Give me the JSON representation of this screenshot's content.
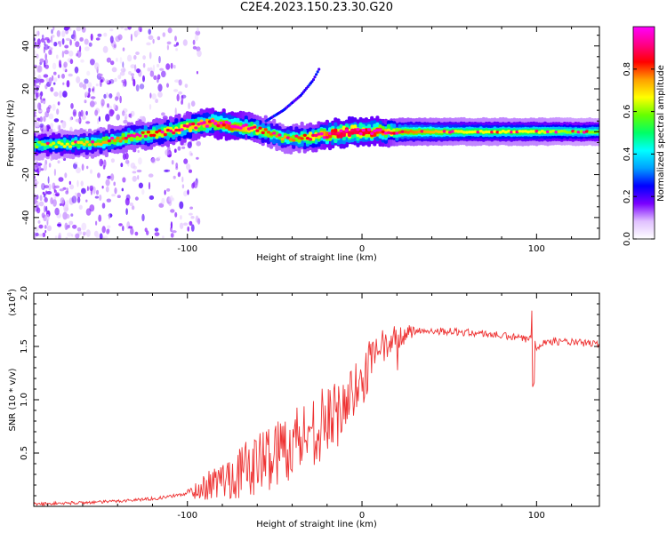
{
  "title": "C2E4.2023.150.23.30.G20",
  "chart_data": [
    {
      "type": "heatmap",
      "title": "C2E4.2023.150.23.30.G20",
      "xlabel": "Height of straight line (km)",
      "ylabel": "Frequency (Hz)",
      "xlim": [
        -188,
        136
      ],
      "ylim": [
        -50,
        49
      ],
      "xticks": [
        -100,
        0,
        100
      ],
      "xtick_labels": [
        "-100",
        "0",
        "100"
      ],
      "yticks": [
        -40,
        -20,
        0,
        20,
        40
      ],
      "ytick_labels": [
        "-40",
        "-20",
        "0",
        "20",
        "40"
      ],
      "colorbar": {
        "label": "Normalized spectral amplitude",
        "range": [
          0,
          1
        ],
        "ticks": [
          0.0,
          0.2,
          0.4,
          0.6,
          0.8
        ],
        "tick_labels": [
          "0.0",
          "0.2",
          "0.4",
          "0.6",
          "0.8"
        ],
        "colormap": [
          "#ffffff",
          "#e0c0ff",
          "#7a00ff",
          "#0000ff",
          "#00a0ff",
          "#00ffff",
          "#00ff66",
          "#66ff00",
          "#ffff00",
          "#ffa000",
          "#ff0000",
          "#ff0088",
          "#ff00ff"
        ]
      },
      "ridge": {
        "x": [
          -188,
          -170,
          -150,
          -130,
          -110,
          -95,
          -85,
          -75,
          -65,
          -55,
          -45,
          -35,
          -25,
          -15,
          -5,
          0,
          10,
          20,
          40,
          60,
          80,
          100,
          120,
          136
        ],
        "freq": [
          -6,
          -6,
          -5,
          -2,
          0,
          3,
          4,
          3,
          2,
          0,
          -3,
          -3,
          -2,
          -1,
          0,
          0,
          0,
          0,
          0,
          0,
          0,
          0,
          0,
          0
        ],
        "amplitude": [
          0.45,
          0.5,
          0.55,
          0.6,
          0.65,
          0.7,
          0.75,
          0.8,
          0.7,
          0.6,
          0.55,
          0.6,
          0.7,
          0.85,
          0.9,
          0.85,
          0.8,
          0.6,
          0.55,
          0.5,
          0.5,
          0.5,
          0.45,
          0.45
        ]
      },
      "branch": {
        "x": [
          -55,
          -45,
          -35,
          -28,
          -24
        ],
        "freq": [
          5,
          10,
          17,
          24,
          30
        ]
      }
    },
    {
      "type": "line",
      "xlabel": "Height of straight line (km)",
      "ylabel": "SNR (10 * v/v)",
      "y_scale_label": "(x10",
      "y_scale_exp": "4",
      "y_scale_close": ")",
      "xlim": [
        -188,
        136
      ],
      "ylim": [
        0,
        2.0
      ],
      "xticks": [
        -100,
        0,
        100
      ],
      "xtick_labels": [
        "-100",
        "0",
        "100"
      ],
      "yticks": [
        0.5,
        1.0,
        1.5,
        2.0
      ],
      "ytick_labels": [
        "0.5",
        "1.0",
        "1.5",
        "2.0"
      ],
      "series": [
        {
          "name": "SNR",
          "color": "#ee3333",
          "x": [
            -188,
            -170,
            -150,
            -130,
            -115,
            -100,
            -90,
            -80,
            -70,
            -60,
            -50,
            -40,
            -30,
            -20,
            -15,
            -10,
            -5,
            0,
            5,
            10,
            15,
            20,
            25,
            30,
            40,
            50,
            60,
            70,
            80,
            90,
            95,
            98,
            100,
            105,
            110,
            120,
            136
          ],
          "values": [
            0.02,
            0.03,
            0.04,
            0.06,
            0.08,
            0.12,
            0.18,
            0.25,
            0.32,
            0.4,
            0.5,
            0.6,
            0.7,
            0.8,
            0.85,
            0.95,
            1.05,
            1.2,
            1.35,
            1.45,
            1.52,
            1.58,
            1.62,
            1.64,
            1.65,
            1.64,
            1.63,
            1.62,
            1.6,
            1.58,
            1.56,
            1.6,
            1.5,
            1.54,
            1.55,
            1.54,
            1.52
          ]
        }
      ]
    }
  ]
}
